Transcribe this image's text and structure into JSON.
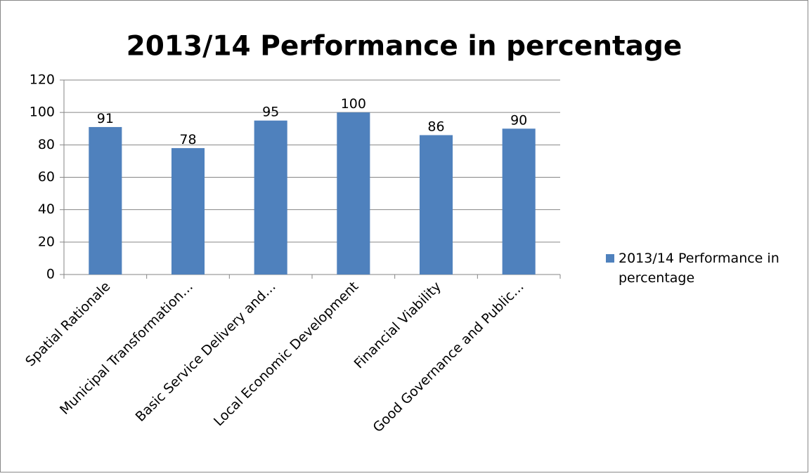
{
  "chart_data": {
    "type": "bar",
    "title": "2013/14 Performance in percentage",
    "categories": [
      "Spatial Rationale",
      "Municipal Transformation…",
      "Basic Service Delivery and…",
      "Local Economic Development",
      "Financial Viability",
      "Good Governance and Public…"
    ],
    "series": [
      {
        "name": "2013/14 Performance in percentage",
        "color": "#4f81bd",
        "values": [
          91,
          78,
          95,
          100,
          86,
          90
        ]
      }
    ],
    "ylim": [
      0,
      120
    ],
    "yticks": [
      0,
      20,
      40,
      60,
      80,
      100,
      120
    ],
    "grid": true,
    "legend": "right"
  }
}
